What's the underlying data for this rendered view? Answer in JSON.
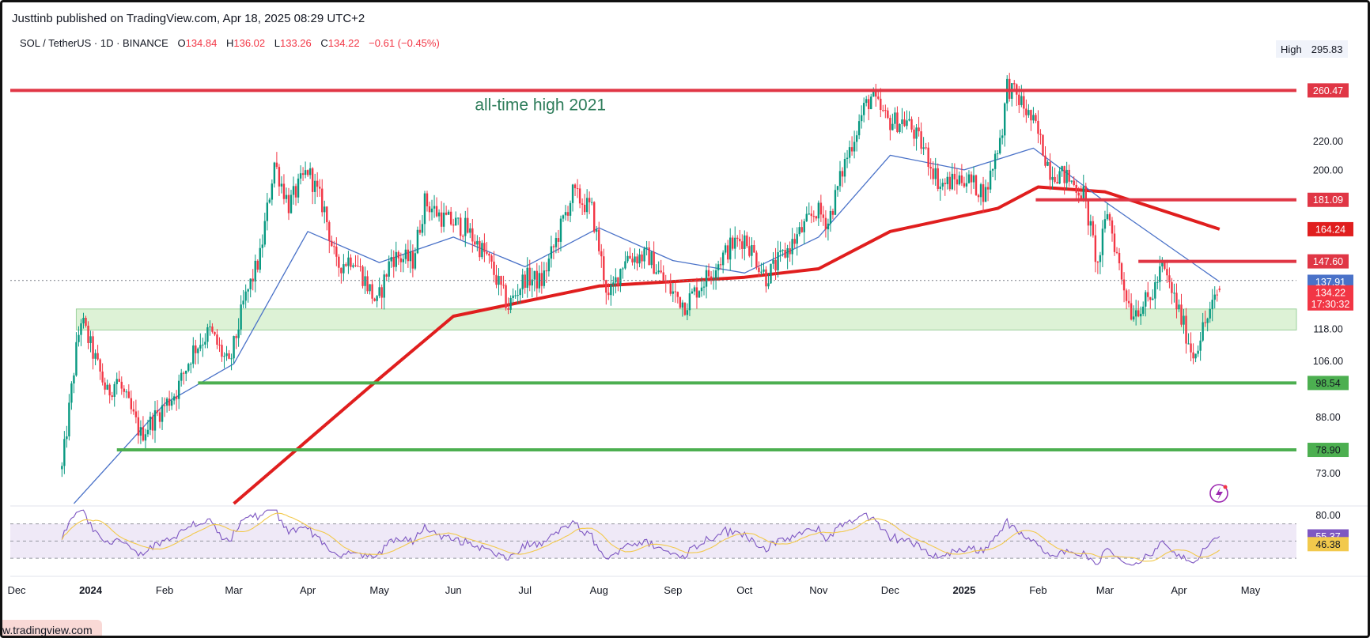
{
  "publisher": "Justtinb published on TradingView.com, Apr 18, 2025 08:29 UTC+2",
  "legend": {
    "symbol": "SOL / TetherUS · 1D · BINANCE",
    "open_label": "O",
    "open": "134.84",
    "high_label": "H",
    "high": "136.02",
    "low_label": "L",
    "low": "133.26",
    "close_label": "C",
    "close": "134.22",
    "change": "−0.61 (−0.45%)"
  },
  "high_marker": {
    "label": "High",
    "value": "295.83"
  },
  "watermark": "w.tradingview.com",
  "annotation": "all-time high 2021",
  "colors": {
    "up": "#089981",
    "down": "#f23645",
    "ma200": "#e01e1e",
    "ma50": "#4a72c8",
    "resistance": "#e03645",
    "support": "#4caf50",
    "zone_fill": "#d8f0d0",
    "annotation": "#2e7d5b",
    "rsi": "#7e57c2",
    "rsi_ma": "#f2c94c"
  },
  "chart_data": [
    {
      "type": "candlestick",
      "title": "SOL / TetherUS · 1D · BINANCE",
      "x_axis": {
        "ticks": [
          "Dec",
          "2024",
          "Feb",
          "Mar",
          "Apr",
          "May",
          "Jun",
          "Jul",
          "Aug",
          "Sep",
          "Oct",
          "Nov",
          "Dec",
          "2025",
          "Feb",
          "Mar",
          "Apr",
          "May"
        ],
        "bold_ticks": [
          "2024",
          "2025"
        ]
      },
      "y_axis": {
        "scale": "log",
        "ticks": [
          "220.00",
          "200.00",
          "118.00",
          "106.00",
          "88.00",
          "73.00"
        ],
        "range": [
          66,
          320
        ]
      },
      "horizontal_levels": [
        {
          "value": 260.47,
          "label": "260.47",
          "kind": "resistance",
          "from": "Dec 2023",
          "to": "end"
        },
        {
          "value": 181.09,
          "label": "181.09",
          "kind": "resistance",
          "from": "Jan 31 2025",
          "to": "end"
        },
        {
          "value": 147.6,
          "label": "147.60",
          "kind": "resistance",
          "from": "Mar 15 2025",
          "to": "end"
        },
        {
          "value": 98.54,
          "label": "98.54",
          "kind": "support",
          "from": "Feb 15 2024",
          "to": "end"
        },
        {
          "value": 78.9,
          "label": "78.90",
          "kind": "support",
          "from": "Jan 12 2024",
          "to": "end"
        }
      ],
      "zone": {
        "from_value": 117.5,
        "to_value": 126.0,
        "from": "Dec 2023",
        "to": "end"
      },
      "price_labels": [
        {
          "value": 164.24,
          "label": "164.24",
          "color": "#e01e1e"
        },
        {
          "value": 137.91,
          "label": "137.91",
          "color": "#4a72c8"
        },
        {
          "value": 134.22,
          "label": "134.22",
          "sub": "17:30:32",
          "color": "#f23645"
        }
      ],
      "ohlc_last": {
        "open": 134.84,
        "high": 136.02,
        "low": 133.26,
        "close": 134.22
      },
      "price_path_approx": [
        [
          "Dec 20 2023",
          74
        ],
        [
          "Dec 26 2023",
          110
        ],
        [
          "Dec 28 2023",
          122
        ],
        [
          "Jan 8 2024",
          95
        ],
        [
          "Jan 12 2024",
          100
        ],
        [
          "Jan 22 2024",
          83
        ],
        [
          "Feb 6 2024",
          96
        ],
        [
          "Feb 13 2024",
          110
        ],
        [
          "Feb 20 2024",
          117
        ],
        [
          "Feb 28 2024",
          104
        ],
        [
          "Mar 5 2024",
          128
        ],
        [
          "Mar 12 2024",
          150
        ],
        [
          "Mar 18 2024",
          205
        ],
        [
          "Mar 24 2024",
          178
        ],
        [
          "Apr 1 2024",
          200
        ],
        [
          "Apr 8 2024",
          175
        ],
        [
          "Apr 13 2024",
          145
        ],
        [
          "Apr 20 2024",
          150
        ],
        [
          "Apr 30 2024",
          128
        ],
        [
          "May 6 2024",
          150
        ],
        [
          "May 15 2024",
          148
        ],
        [
          "May 20 2024",
          180
        ],
        [
          "May 28 2024",
          170
        ],
        [
          "Jun 6 2024",
          165
        ],
        [
          "Jun 15 2024",
          150
        ],
        [
          "Jun 24 2024",
          127
        ],
        [
          "Jul 1 2024",
          140
        ],
        [
          "Jul 8 2024",
          138
        ],
        [
          "Jul 14 2024",
          158
        ],
        [
          "Jul 21 2024",
          185
        ],
        [
          "Jul 29 2024",
          175
        ],
        [
          "Aug 5 2024",
          130
        ],
        [
          "Aug 12 2024",
          150
        ],
        [
          "Aug 22 2024",
          150
        ],
        [
          "Aug 30 2024",
          135
        ],
        [
          "Sep 6 2024",
          128
        ],
        [
          "Sep 15 2024",
          140
        ],
        [
          "Sep 25 2024",
          155
        ],
        [
          "Oct 1 2024",
          160
        ],
        [
          "Oct 10 2024",
          140
        ],
        [
          "Oct 20 2024",
          155
        ],
        [
          "Oct 31 2024",
          175
        ],
        [
          "Nov 5 2024",
          168
        ],
        [
          "Nov 12 2024",
          205
        ],
        [
          "Nov 20 2024",
          245
        ],
        [
          "Nov 23 2024",
          255
        ],
        [
          "Nov 30 2024",
          235
        ],
        [
          "Dec 8 2024",
          235
        ],
        [
          "Dec 15 2024",
          215
        ],
        [
          "Dec 22 2024",
          190
        ],
        [
          "Jan 1 2025",
          195
        ],
        [
          "Jan 10 2025",
          185
        ],
        [
          "Jan 17 2025",
          230
        ],
        [
          "Jan 19 2025",
          265
        ],
        [
          "Jan 25 2025",
          250
        ],
        [
          "Jan 31 2025",
          230
        ],
        [
          "Feb 6 2025",
          200
        ],
        [
          "Feb 13 2025",
          195
        ],
        [
          "Feb 20 2025",
          185
        ],
        [
          "Feb 26 2025",
          145
        ],
        [
          "Mar 2 2025",
          175
        ],
        [
          "Mar 8 2025",
          140
        ],
        [
          "Mar 12 2025",
          125
        ],
        [
          "Mar 20 2025",
          130
        ],
        [
          "Mar 25 2025",
          145
        ],
        [
          "Apr 1 2025",
          125
        ],
        [
          "Apr 7 2025",
          108
        ],
        [
          "Apr 11 2025",
          118
        ],
        [
          "Apr 18 2025",
          134.22
        ]
      ],
      "moving_averages": [
        {
          "name": "MA 200",
          "last": 164.24,
          "path": [
            [
              "Mar 1 2024",
              66
            ],
            [
              "May 1 2024",
              100
            ],
            [
              "Jun 1 2024",
              123
            ],
            [
              "Aug 1 2024",
              136
            ],
            [
              "Oct 1 2024",
              140
            ],
            [
              "Nov 1 2024",
              144
            ],
            [
              "Dec 1 2024",
              163
            ],
            [
              "Jan 15 2025",
              176
            ],
            [
              "Feb 1 2025",
              189
            ],
            [
              "Mar 1 2025",
              186
            ],
            [
              "Apr 18 2025",
              164.24
            ]
          ]
        },
        {
          "name": "MA 50",
          "last": 137.91,
          "path": [
            [
              "Dec 25 2023",
              66
            ],
            [
              "Feb 1 2024",
              92
            ],
            [
              "Mar 1 2024",
              105
            ],
            [
              "Apr 1 2024",
              163
            ],
            [
              "May 1 2024",
              147
            ],
            [
              "Jun 1 2024",
              160
            ],
            [
              "Jul 1 2024",
              145
            ],
            [
              "Aug 1 2024",
              165
            ],
            [
              "Sep 1 2024",
              148
            ],
            [
              "Oct 1 2024",
              142
            ],
            [
              "Nov 1 2024",
              160
            ],
            [
              "Dec 1 2024",
              210
            ],
            [
              "Jan 1 2025",
              200
            ],
            [
              "Jan 30 2025",
              215
            ],
            [
              "Mar 1 2025",
              180
            ],
            [
              "Apr 18 2025",
              137.91
            ]
          ]
        }
      ]
    },
    {
      "type": "line",
      "title": "RSI",
      "y_axis": {
        "range": [
          20,
          88
        ],
        "ticks": [
          "80.00"
        ],
        "upper_band": 70,
        "lower_band": 30
      },
      "series_last": [
        {
          "label": "55.37",
          "value": 55.37,
          "color": "#7e57c2"
        },
        {
          "label": "46.38",
          "value": 46.38,
          "color": "#f2c94c"
        }
      ]
    }
  ]
}
